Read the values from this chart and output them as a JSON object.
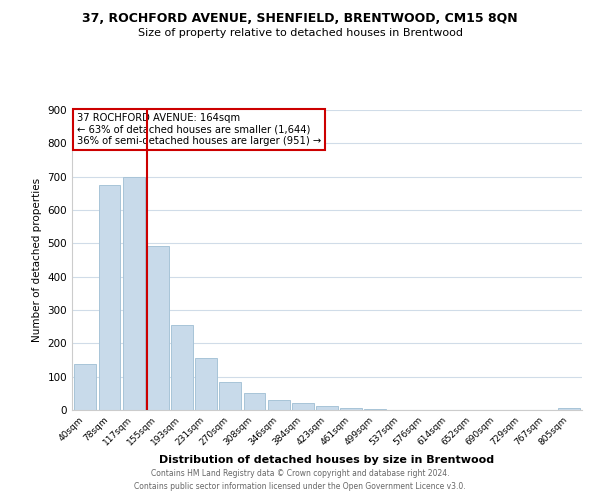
{
  "title": "37, ROCHFORD AVENUE, SHENFIELD, BRENTWOOD, CM15 8QN",
  "subtitle": "Size of property relative to detached houses in Brentwood",
  "xlabel": "Distribution of detached houses by size in Brentwood",
  "ylabel": "Number of detached properties",
  "bar_color": "#c8daea",
  "bar_edge_color": "#a8c4d8",
  "bin_labels": [
    "40sqm",
    "78sqm",
    "117sqm",
    "155sqm",
    "193sqm",
    "231sqm",
    "270sqm",
    "308sqm",
    "346sqm",
    "384sqm",
    "423sqm",
    "461sqm",
    "499sqm",
    "537sqm",
    "576sqm",
    "614sqm",
    "652sqm",
    "690sqm",
    "729sqm",
    "767sqm",
    "805sqm"
  ],
  "bar_heights": [
    137,
    675,
    700,
    493,
    255,
    155,
    85,
    50,
    30,
    20,
    13,
    5,
    2,
    1,
    0,
    0,
    0,
    0,
    0,
    0,
    5
  ],
  "ylim": [
    0,
    900
  ],
  "yticks": [
    0,
    100,
    200,
    300,
    400,
    500,
    600,
    700,
    800,
    900
  ],
  "vline_index": 3,
  "vline_color": "#cc0000",
  "annotation_title": "37 ROCHFORD AVENUE: 164sqm",
  "annotation_line1": "← 63% of detached houses are smaller (1,644)",
  "annotation_line2": "36% of semi-detached houses are larger (951) →",
  "footer1": "Contains HM Land Registry data © Crown copyright and database right 2024.",
  "footer2": "Contains public sector information licensed under the Open Government Licence v3.0."
}
